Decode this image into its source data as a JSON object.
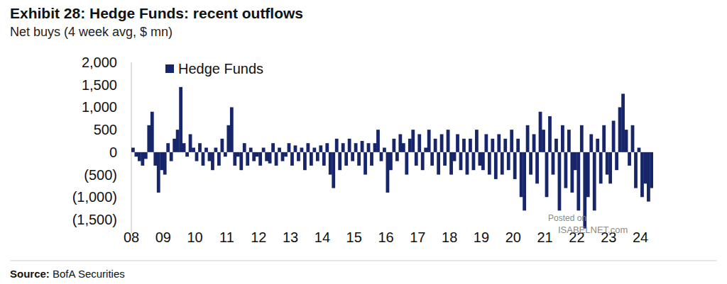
{
  "chart_data": {
    "type": "bar",
    "title": "Exhibit 28: Hedge Funds: recent outflows",
    "subtitle": "Net buys (4 week avg, $ mn)",
    "source": "Source: BofA Securities",
    "watermark": [
      "Posted on",
      "ISABELNET.com"
    ],
    "x": [
      2008.0,
      2008.1,
      2008.2,
      2008.3,
      2008.4,
      2008.5,
      2008.6,
      2008.7,
      2008.8,
      2008.9,
      2009.0,
      2009.1,
      2009.2,
      2009.3,
      2009.4,
      2009.5,
      2009.6,
      2009.7,
      2009.8,
      2009.9,
      2010.0,
      2010.1,
      2010.2,
      2010.3,
      2010.4,
      2010.5,
      2010.6,
      2010.7,
      2010.8,
      2010.9,
      2011.0,
      2011.1,
      2011.2,
      2011.3,
      2011.4,
      2011.5,
      2011.6,
      2011.7,
      2011.8,
      2011.9,
      2012.0,
      2012.1,
      2012.2,
      2012.3,
      2012.4,
      2012.5,
      2012.6,
      2012.7,
      2012.8,
      2012.9,
      2013.0,
      2013.1,
      2013.2,
      2013.3,
      2013.4,
      2013.5,
      2013.6,
      2013.7,
      2013.8,
      2013.9,
      2014.0,
      2014.1,
      2014.2,
      2014.3,
      2014.4,
      2014.5,
      2014.6,
      2014.7,
      2014.8,
      2014.9,
      2015.0,
      2015.1,
      2015.2,
      2015.3,
      2015.4,
      2015.5,
      2015.6,
      2015.7,
      2015.8,
      2015.9,
      2016.0,
      2016.1,
      2016.2,
      2016.3,
      2016.4,
      2016.5,
      2016.6,
      2016.7,
      2016.8,
      2016.9,
      2017.0,
      2017.1,
      2017.2,
      2017.3,
      2017.4,
      2017.5,
      2017.6,
      2017.7,
      2017.8,
      2017.9,
      2018.0,
      2018.1,
      2018.2,
      2018.3,
      2018.4,
      2018.5,
      2018.6,
      2018.7,
      2018.8,
      2018.9,
      2019.0,
      2019.1,
      2019.2,
      2019.3,
      2019.4,
      2019.5,
      2019.6,
      2019.7,
      2019.8,
      2019.9,
      2020.0,
      2020.1,
      2020.2,
      2020.3,
      2020.4,
      2020.5,
      2020.6,
      2020.7,
      2020.8,
      2020.9,
      2021.0,
      2021.1,
      2021.2,
      2021.3,
      2021.4,
      2021.5,
      2021.6,
      2021.7,
      2021.8,
      2021.9,
      2022.0,
      2022.1,
      2022.2,
      2022.3,
      2022.4,
      2022.5,
      2022.6,
      2022.7,
      2022.8,
      2022.9,
      2023.0,
      2023.1,
      2023.2,
      2023.3,
      2023.4,
      2023.5,
      2023.6,
      2023.7,
      2023.8,
      2023.9,
      2024.0,
      2024.1,
      2024.2,
      2024.3
    ],
    "series": [
      {
        "name": "Hedge Funds",
        "color": "#17256b",
        "values": [
          100,
          -100,
          -200,
          -300,
          -150,
          600,
          900,
          -300,
          -900,
          -400,
          -500,
          200,
          -200,
          300,
          500,
          1450,
          200,
          -100,
          400,
          100,
          -200,
          200,
          -300,
          100,
          -200,
          -400,
          100,
          -300,
          300,
          -100,
          600,
          1000,
          -300,
          -100,
          -400,
          200,
          -300,
          100,
          -200,
          -100,
          -300,
          100,
          -200,
          -250,
          200,
          -300,
          100,
          -200,
          -100,
          200,
          -300,
          150,
          -200,
          100,
          -400,
          200,
          -300,
          100,
          -200,
          150,
          -300,
          200,
          -500,
          -800,
          300,
          -400,
          200,
          -300,
          300,
          -200,
          200,
          -300,
          250,
          -500,
          200,
          -300,
          200,
          500,
          -200,
          100,
          -900,
          -400,
          300,
          -200,
          400,
          200,
          -500,
          300,
          500,
          -300,
          400,
          -400,
          100,
          500,
          -300,
          300,
          -500,
          400,
          -300,
          500,
          -500,
          -200,
          400,
          -400,
          300,
          -500,
          300,
          -400,
          500,
          -300,
          -400,
          400,
          -500,
          300,
          -600,
          400,
          -500,
          300,
          -400,
          500,
          -600,
          300,
          -1000,
          -1300,
          600,
          -500,
          400,
          -700,
          900,
          500,
          -1000,
          800,
          -500,
          300,
          -1300,
          600,
          -800,
          500,
          -900,
          -400,
          -1300,
          600,
          -1700,
          -1000,
          400,
          -1300,
          300,
          -700,
          600,
          -500,
          -700,
          700,
          -400,
          1000,
          1300,
          500,
          -300,
          600,
          -800,
          100,
          -1000,
          -700,
          -1100,
          -800
        ]
      }
    ],
    "xlim": [
      2008,
      2024.4
    ],
    "xticks": [
      {
        "value": 2008,
        "label": "08"
      },
      {
        "value": 2009,
        "label": "09"
      },
      {
        "value": 2010,
        "label": "10"
      },
      {
        "value": 2011,
        "label": "11"
      },
      {
        "value": 2012,
        "label": "12"
      },
      {
        "value": 2013,
        "label": "13"
      },
      {
        "value": 2014,
        "label": "14"
      },
      {
        "value": 2015,
        "label": "15"
      },
      {
        "value": 2016,
        "label": "16"
      },
      {
        "value": 2017,
        "label": "17"
      },
      {
        "value": 2018,
        "label": "18"
      },
      {
        "value": 2019,
        "label": "19"
      },
      {
        "value": 2020,
        "label": "20"
      },
      {
        "value": 2021,
        "label": "21"
      },
      {
        "value": 2022,
        "label": "22"
      },
      {
        "value": 2023,
        "label": "23"
      },
      {
        "value": 2024,
        "label": "24"
      }
    ],
    "ylim": [
      -1800,
      2000
    ],
    "yticks": [
      {
        "value": 2000,
        "label": "2,000"
      },
      {
        "value": 1500,
        "label": "1,500"
      },
      {
        "value": 1000,
        "label": "1,000"
      },
      500,
      0,
      {
        "value": -500,
        "label": "(500)"
      },
      {
        "value": -1000,
        "label": "(1,000)"
      },
      {
        "value": -1500,
        "label": "(1,500)"
      }
    ],
    "grid": false,
    "legend": "top-left"
  }
}
